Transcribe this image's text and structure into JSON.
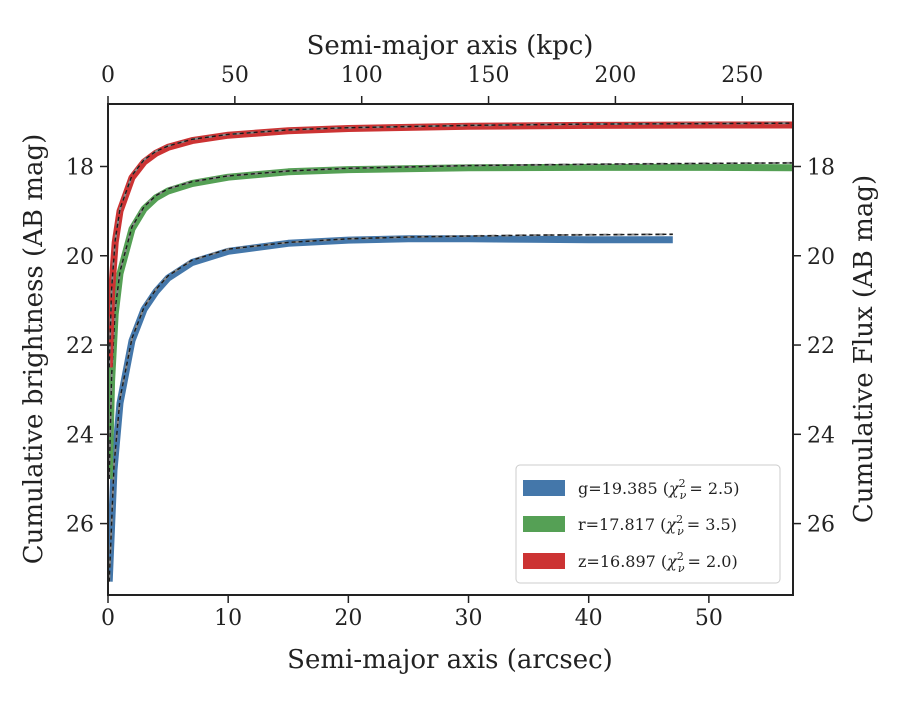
{
  "chart_data": {
    "type": "line",
    "xlabel": "Semi-major axis (arcsec)",
    "xlabel_top": "Semi-major axis (kpc)",
    "ylabel": "Cumulative brightness (AB mag)",
    "ylabel_right": "Cumulative Flux (AB mag)",
    "xlim": [
      0,
      57
    ],
    "xlim_top": [
      0,
      270
    ],
    "ylim": [
      27.6,
      16.6
    ],
    "y_inverted": true,
    "grid": false,
    "x_ticks": [
      0,
      10,
      20,
      30,
      40,
      50
    ],
    "x_ticks_top": [
      0,
      50,
      100,
      150,
      200,
      250
    ],
    "y_ticks": [
      18,
      20,
      22,
      24,
      26
    ],
    "legend_position": "lower-right",
    "series": [
      {
        "name": "g=19.385 (χ²ᵥ = 2.5)",
        "legend_text": "g=19.385 (",
        "chi_value": "= 2.5)",
        "color": "#4477aa",
        "x_max": 47,
        "m_inf": 19.385,
        "points": [
          [
            0.1,
            27.3
          ],
          [
            0.5,
            24.8
          ],
          [
            1,
            23.3
          ],
          [
            2,
            21.9
          ],
          [
            3,
            21.2
          ],
          [
            4,
            20.8
          ],
          [
            5,
            20.5
          ],
          [
            7,
            20.15
          ],
          [
            10,
            19.9
          ],
          [
            15,
            19.72
          ],
          [
            20,
            19.65
          ],
          [
            25,
            19.62
          ],
          [
            30,
            19.62
          ],
          [
            35,
            19.63
          ],
          [
            40,
            19.64
          ],
          [
            45,
            19.64
          ],
          [
            47,
            19.64
          ]
        ],
        "model": [
          [
            0.1,
            27.3
          ],
          [
            0.5,
            24.7
          ],
          [
            1,
            23.2
          ],
          [
            2,
            21.85
          ],
          [
            3,
            21.15
          ],
          [
            4,
            20.75
          ],
          [
            5,
            20.45
          ],
          [
            7,
            20.1
          ],
          [
            10,
            19.85
          ],
          [
            15,
            19.7
          ],
          [
            20,
            19.62
          ],
          [
            25,
            19.58
          ],
          [
            30,
            19.56
          ],
          [
            35,
            19.54
          ],
          [
            40,
            19.53
          ],
          [
            47,
            19.52
          ]
        ]
      },
      {
        "name": "r=17.817 (χ²ᵥ = 3.5)",
        "legend_text": "r=17.817 (",
        "chi_value": "= 3.5)",
        "color": "#55a055",
        "x_max": 57,
        "m_inf": 17.817,
        "points": [
          [
            0.1,
            25.0
          ],
          [
            0.3,
            22.8
          ],
          [
            0.6,
            21.3
          ],
          [
            1,
            20.4
          ],
          [
            2,
            19.4
          ],
          [
            3,
            18.95
          ],
          [
            4,
            18.7
          ],
          [
            5,
            18.55
          ],
          [
            7,
            18.38
          ],
          [
            10,
            18.24
          ],
          [
            15,
            18.12
          ],
          [
            20,
            18.07
          ],
          [
            30,
            18.03
          ],
          [
            40,
            18.02
          ],
          [
            50,
            18.02
          ],
          [
            57,
            18.03
          ]
        ],
        "model": [
          [
            0.1,
            25.0
          ],
          [
            0.3,
            22.7
          ],
          [
            0.6,
            21.2
          ],
          [
            1,
            20.35
          ],
          [
            2,
            19.35
          ],
          [
            3,
            18.9
          ],
          [
            4,
            18.65
          ],
          [
            5,
            18.5
          ],
          [
            7,
            18.34
          ],
          [
            10,
            18.21
          ],
          [
            15,
            18.1
          ],
          [
            20,
            18.04
          ],
          [
            30,
            17.98
          ],
          [
            40,
            17.95
          ],
          [
            50,
            17.93
          ],
          [
            57,
            17.92
          ]
        ]
      },
      {
        "name": "z=16.897 (χ²ᵥ = 2.0)",
        "legend_text": "z=16.897 (",
        "chi_value": "= 2.0)",
        "color": "#cc3333",
        "x_max": 57,
        "m_inf": 16.897,
        "points": [
          [
            0.1,
            22.5
          ],
          [
            0.3,
            20.8
          ],
          [
            0.6,
            19.7
          ],
          [
            1,
            19.0
          ],
          [
            2,
            18.25
          ],
          [
            3,
            17.9
          ],
          [
            4,
            17.7
          ],
          [
            5,
            17.57
          ],
          [
            7,
            17.42
          ],
          [
            10,
            17.3
          ],
          [
            15,
            17.2
          ],
          [
            20,
            17.15
          ],
          [
            30,
            17.1
          ],
          [
            40,
            17.08
          ],
          [
            50,
            17.07
          ],
          [
            57,
            17.07
          ]
        ],
        "model": [
          [
            0.1,
            22.5
          ],
          [
            0.3,
            20.75
          ],
          [
            0.6,
            19.65
          ],
          [
            1,
            18.95
          ],
          [
            2,
            18.2
          ],
          [
            3,
            17.85
          ],
          [
            4,
            17.66
          ],
          [
            5,
            17.54
          ],
          [
            7,
            17.39
          ],
          [
            10,
            17.28
          ],
          [
            15,
            17.18
          ],
          [
            20,
            17.13
          ],
          [
            30,
            17.08
          ],
          [
            40,
            17.05
          ],
          [
            50,
            17.04
          ],
          [
            57,
            17.03
          ]
        ]
      }
    ]
  }
}
